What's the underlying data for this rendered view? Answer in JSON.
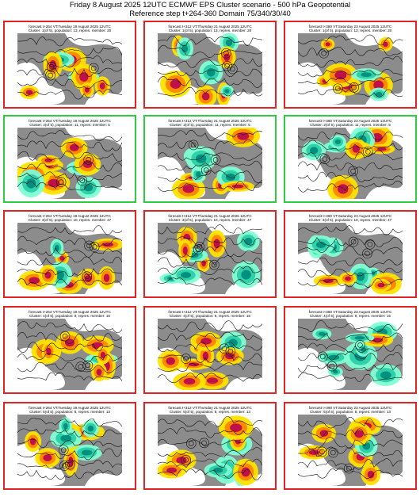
{
  "header": {
    "title": "Friday 8 August 2025 12UTC ECMWF EPS Cluster scenario - 500 hPa Geopotential",
    "subtitle": "Reference step t+264-360 Domain 75/340/30/40"
  },
  "rows": [
    {
      "border_color": "#e02424",
      "panels": [
        {
          "forecast": "forecast t+264 VT:Tuesday 19 August 2025 12UTC",
          "cluster": "Cluster: 1(of 5), population: 13, repres. member: 20"
        },
        {
          "forecast": "forecast t+312 VT:Thursday 21 August 2025 12UTC",
          "cluster": "Cluster: 1(of 5), population: 13, repres. member: 20"
        },
        {
          "forecast": "forecast t+360 VT:Saturday 23 August 2025 12UTC",
          "cluster": "Cluster: 1(of 5), population: 13, repres. member: 20"
        }
      ]
    },
    {
      "border_color": "#2ecc40",
      "panels": [
        {
          "forecast": "forecast t+264 VT:Tuesday 19 August 2025 12UTC",
          "cluster": "Cluster: 2(of 5), population: 11, repres. member: 5"
        },
        {
          "forecast": "forecast t+312 VT:Thursday 21 August 2025 12UTC",
          "cluster": "Cluster: 2(of 5), population: 11, repres. member: 5"
        },
        {
          "forecast": "forecast t+360 VT:Saturday 23 August 2025 12UTC",
          "cluster": "Cluster: 2(of 5), population: 11, repres. member: 5"
        }
      ]
    },
    {
      "border_color": "#e02424",
      "panels": [
        {
          "forecast": "forecast t+264 VT:Tuesday 19 August 2025 12UTC",
          "cluster": "Cluster: 3(of 5), population: 10, repres. member: 47"
        },
        {
          "forecast": "forecast t+312 VT:Thursday 21 August 2025 12UTC",
          "cluster": "Cluster: 3(of 5), population: 10, repres. member: 47"
        },
        {
          "forecast": "forecast t+360 VT:Saturday 23 August 2025 12UTC",
          "cluster": "Cluster: 3(of 5), population: 10, repres. member: 47"
        }
      ]
    },
    {
      "border_color": "#e02424",
      "panels": [
        {
          "forecast": "forecast t+264 VT:Tuesday 19 August 2025 12UTC",
          "cluster": "Cluster: 4(of 5), population: 9, repres. member: 15"
        },
        {
          "forecast": "forecast t+312 VT:Thursday 21 August 2025 12UTC",
          "cluster": "Cluster: 4(of 5), population: 9, repres. member: 15"
        },
        {
          "forecast": "forecast t+360 VT:Saturday 23 August 2025 12UTC",
          "cluster": "Cluster: 4(of 5), population: 9, repres. member: 15"
        }
      ]
    },
    {
      "border_color": "#e02424",
      "panels": [
        {
          "forecast": "forecast t+264 VT:Tuesday 19 August 2025 12UTC",
          "cluster": "Cluster: 5(of 5), population: 8, repres. member: 13"
        },
        {
          "forecast": "forecast t+312 VT:Thursday 21 August 2025 12UTC",
          "cluster": "Cluster: 5(of 5), population: 8, repres. member: 13"
        },
        {
          "forecast": "forecast t+360 VT:Saturday 23 August 2025 12UTC",
          "cluster": "Cluster: 5(of 5), population: 8, repres. member: 13"
        }
      ]
    }
  ]
}
